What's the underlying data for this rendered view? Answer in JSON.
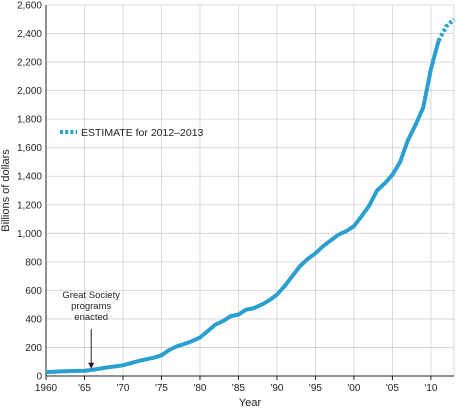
{
  "chart_data": {
    "type": "line",
    "xlabel": "Year",
    "ylabel": "Billions of dollars",
    "xlim": [
      1960,
      2013
    ],
    "ylim": [
      0,
      2600
    ],
    "grid": true,
    "x_ticks": [
      1960,
      1965,
      1970,
      1975,
      1980,
      1985,
      1990,
      1995,
      2000,
      2005,
      2010
    ],
    "x_tick_labels": [
      "1960",
      "'65",
      "'70",
      "'75",
      "'80",
      "'85",
      "'90",
      "'95",
      "'00",
      "'05",
      "'10"
    ],
    "y_ticks": [
      0,
      200,
      400,
      600,
      800,
      1000,
      1200,
      1400,
      1600,
      1800,
      2000,
      2200,
      2400,
      2600
    ],
    "y_tick_labels": [
      "0",
      "200",
      "400",
      "600",
      "800",
      "1,000",
      "1,200",
      "1,400",
      "1,600",
      "1,800",
      "2,000",
      "2,200",
      "2,400",
      "2,600"
    ],
    "colors": {
      "series": "#2a9fd0",
      "grid": "#d0d0d0",
      "text": "#231f20"
    },
    "series": [
      {
        "style": "solid",
        "x": [
          1960,
          1961,
          1962,
          1963,
          1964,
          1965,
          1966,
          1967,
          1968,
          1969,
          1970,
          1971,
          1972,
          1973,
          1974,
          1975,
          1976,
          1977,
          1978,
          1979,
          1980,
          1981,
          1982,
          1983,
          1984,
          1985,
          1986,
          1987,
          1988,
          1989,
          1990,
          1991,
          1992,
          1993,
          1994,
          1995,
          1996,
          1997,
          1998,
          1999,
          2000,
          2001,
          2002,
          2003,
          2004,
          2005,
          2006,
          2007,
          2008,
          2009,
          2010,
          2011
        ],
        "values": [
          26,
          30,
          32,
          34,
          36,
          37,
          43,
          52,
          60,
          67,
          75,
          90,
          105,
          117,
          128,
          145,
          182,
          208,
          225,
          245,
          270,
          315,
          360,
          385,
          420,
          430,
          465,
          475,
          500,
          530,
          570,
          630,
          700,
          770,
          820,
          860,
          910,
          950,
          990,
          1015,
          1050,
          1120,
          1195,
          1300,
          1350,
          1410,
          1500,
          1650,
          1760,
          1880,
          2150,
          2350
        ]
      },
      {
        "name": "ESTIMATE for 2012–2013",
        "style": "dashed",
        "x": [
          2011,
          2012,
          2013
        ],
        "values": [
          2350,
          2450,
          2500
        ]
      }
    ],
    "legend": {
      "label": "ESTIMATE for 2012–2013",
      "placement": "top-left"
    },
    "annotations": [
      {
        "lines": [
          "Great Society",
          "programs",
          "enacted"
        ],
        "x": 1966,
        "value": 37
      }
    ]
  }
}
